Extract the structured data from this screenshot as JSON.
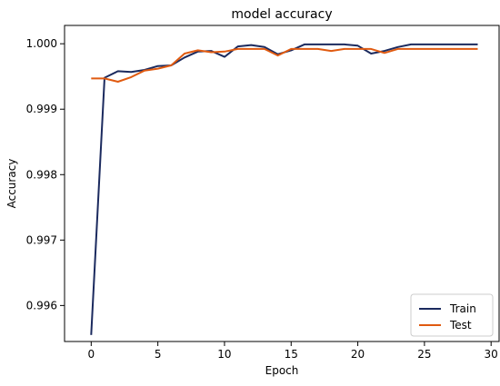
{
  "chart_data": {
    "type": "line",
    "title": "model accuracy",
    "xlabel": "Epoch",
    "ylabel": "Accuracy",
    "xlim": [
      -2,
      30.6
    ],
    "ylim": [
      0.99545,
      1.00028
    ],
    "xticks": [
      0,
      5,
      10,
      15,
      20,
      25,
      30
    ],
    "xtick_labels": [
      "0",
      "5",
      "10",
      "15",
      "20",
      "25",
      "30"
    ],
    "yticks": [
      0.996,
      0.997,
      0.998,
      0.999,
      1.0
    ],
    "ytick_labels": [
      "0.996",
      "0.997",
      "0.998",
      "0.999",
      "1.000"
    ],
    "grid": false,
    "legend_position": "lower right",
    "series": [
      {
        "name": "Train",
        "color": "#1b2a5e",
        "x": [
          0,
          1,
          2,
          3,
          4,
          5,
          6,
          7,
          8,
          9,
          10,
          11,
          12,
          13,
          14,
          15,
          16,
          17,
          18,
          19,
          20,
          21,
          22,
          23,
          24,
          25,
          26,
          27,
          28,
          29
        ],
        "y": [
          0.99555,
          0.99948,
          0.99958,
          0.99957,
          0.9996,
          0.99966,
          0.99967,
          0.99979,
          0.99988,
          0.99989,
          0.9998,
          0.99996,
          0.99998,
          0.99995,
          0.99984,
          0.9999,
          0.99999,
          0.99999,
          0.99999,
          0.99999,
          0.99997,
          0.99985,
          0.99989,
          0.99995,
          0.99999,
          0.99999,
          0.99999,
          0.99999,
          0.99999,
          0.99999
        ]
      },
      {
        "name": "Test",
        "color": "#e05a10",
        "x": [
          0,
          1,
          2,
          3,
          4,
          5,
          6,
          7,
          8,
          9,
          10,
          11,
          12,
          13,
          14,
          15,
          16,
          17,
          18,
          19,
          20,
          21,
          22,
          23,
          24,
          25,
          26,
          27,
          28,
          29
        ],
        "y": [
          0.99947,
          0.99947,
          0.99942,
          0.99949,
          0.99959,
          0.99962,
          0.99967,
          0.99985,
          0.9999,
          0.99987,
          0.99988,
          0.99992,
          0.99992,
          0.99992,
          0.99982,
          0.99992,
          0.99992,
          0.99992,
          0.99989,
          0.99992,
          0.99992,
          0.99992,
          0.99986,
          0.99992,
          0.99992,
          0.99992,
          0.99992,
          0.99992,
          0.99992,
          0.99992
        ]
      }
    ]
  }
}
